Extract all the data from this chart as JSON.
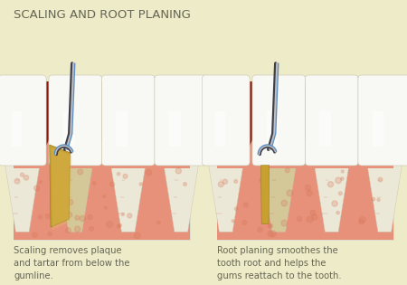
{
  "bg_color": "#eeecc8",
  "title": "SCALING AND ROOT PLANING",
  "title_color": "#666655",
  "title_fontsize": 9.5,
  "caption_left": "Scaling removes plaque\nand tartar from below the\ngumline.",
  "caption_right": "Root planing smoothes the\ntooth root and helps the\ngums reattach to the tooth.",
  "caption_color": "#666655",
  "caption_fontsize": 7.2,
  "panel_edge": "#ddddcc",
  "inner_mouth": "#8b1a10",
  "gum_light": "#e8917a",
  "gum_mid": "#d4785a",
  "gum_dark": "#b86050",
  "tooth_white": "#f8f8f4",
  "tooth_cream": "#ece8d8",
  "tooth_shadow": "#c8c4b0",
  "tartar_gold": "#c8a030",
  "tartar_dark": "#988020",
  "tartar_light": "#e0c060",
  "root_cream": "#d8c8a0",
  "tool_silver": "#c0c0c8",
  "tool_dark": "#404048",
  "tool_blue": "#6090c0",
  "tool_mid": "#808090"
}
